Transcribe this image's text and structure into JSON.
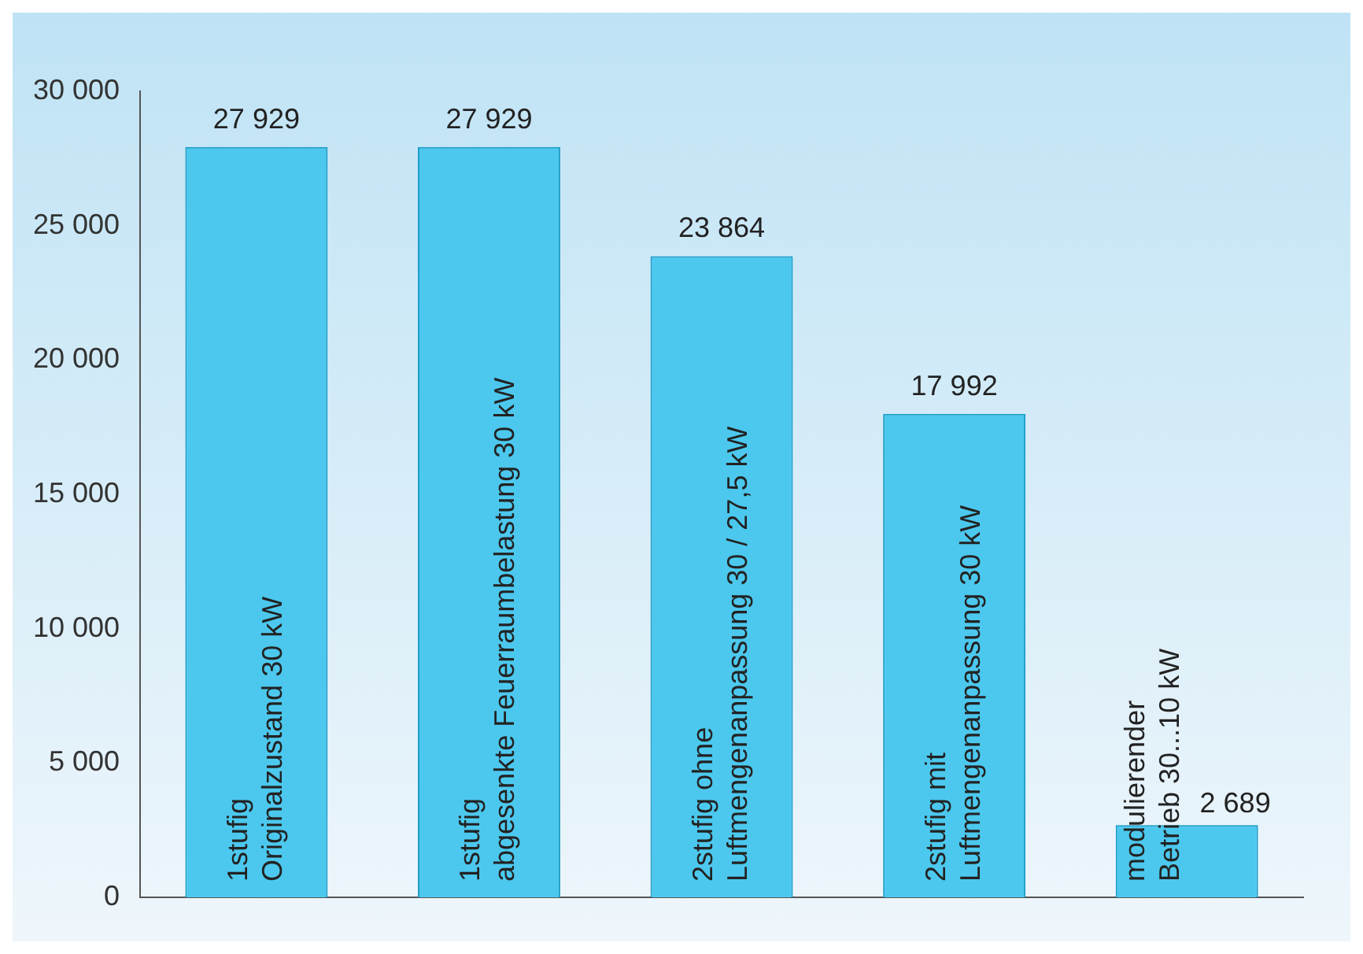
{
  "chart_data": {
    "type": "bar",
    "categories": [
      "1stufig\nOriginalzustand 30 kW",
      "1stufig\nabgesenkte Feuerraumbelastung 30 kW",
      "2stufig ohne\nLuftmengenanpassung 30 / 27,5 kW",
      "2stufig mit\nLuftmengenanpassung 30 kW",
      "modulierender\nBetrieb 30...10 kW"
    ],
    "values": [
      27929,
      27929,
      23864,
      17992,
      2689
    ],
    "value_labels": [
      "27 929",
      "27 929",
      "23 864",
      "17 992",
      "2 689"
    ],
    "color": "#4cc8ee",
    "ylim": [
      0,
      30000
    ],
    "yticks": [
      {
        "value": 0,
        "label": "0"
      },
      {
        "value": 5000,
        "label": "5 000"
      },
      {
        "value": 10000,
        "label": "10 000"
      },
      {
        "value": 15000,
        "label": "15 000"
      },
      {
        "value": 20000,
        "label": "20 000"
      },
      {
        "value": 25000,
        "label": "25 000"
      },
      {
        "value": 30000,
        "label": "30 000"
      }
    ],
    "grid": false
  }
}
